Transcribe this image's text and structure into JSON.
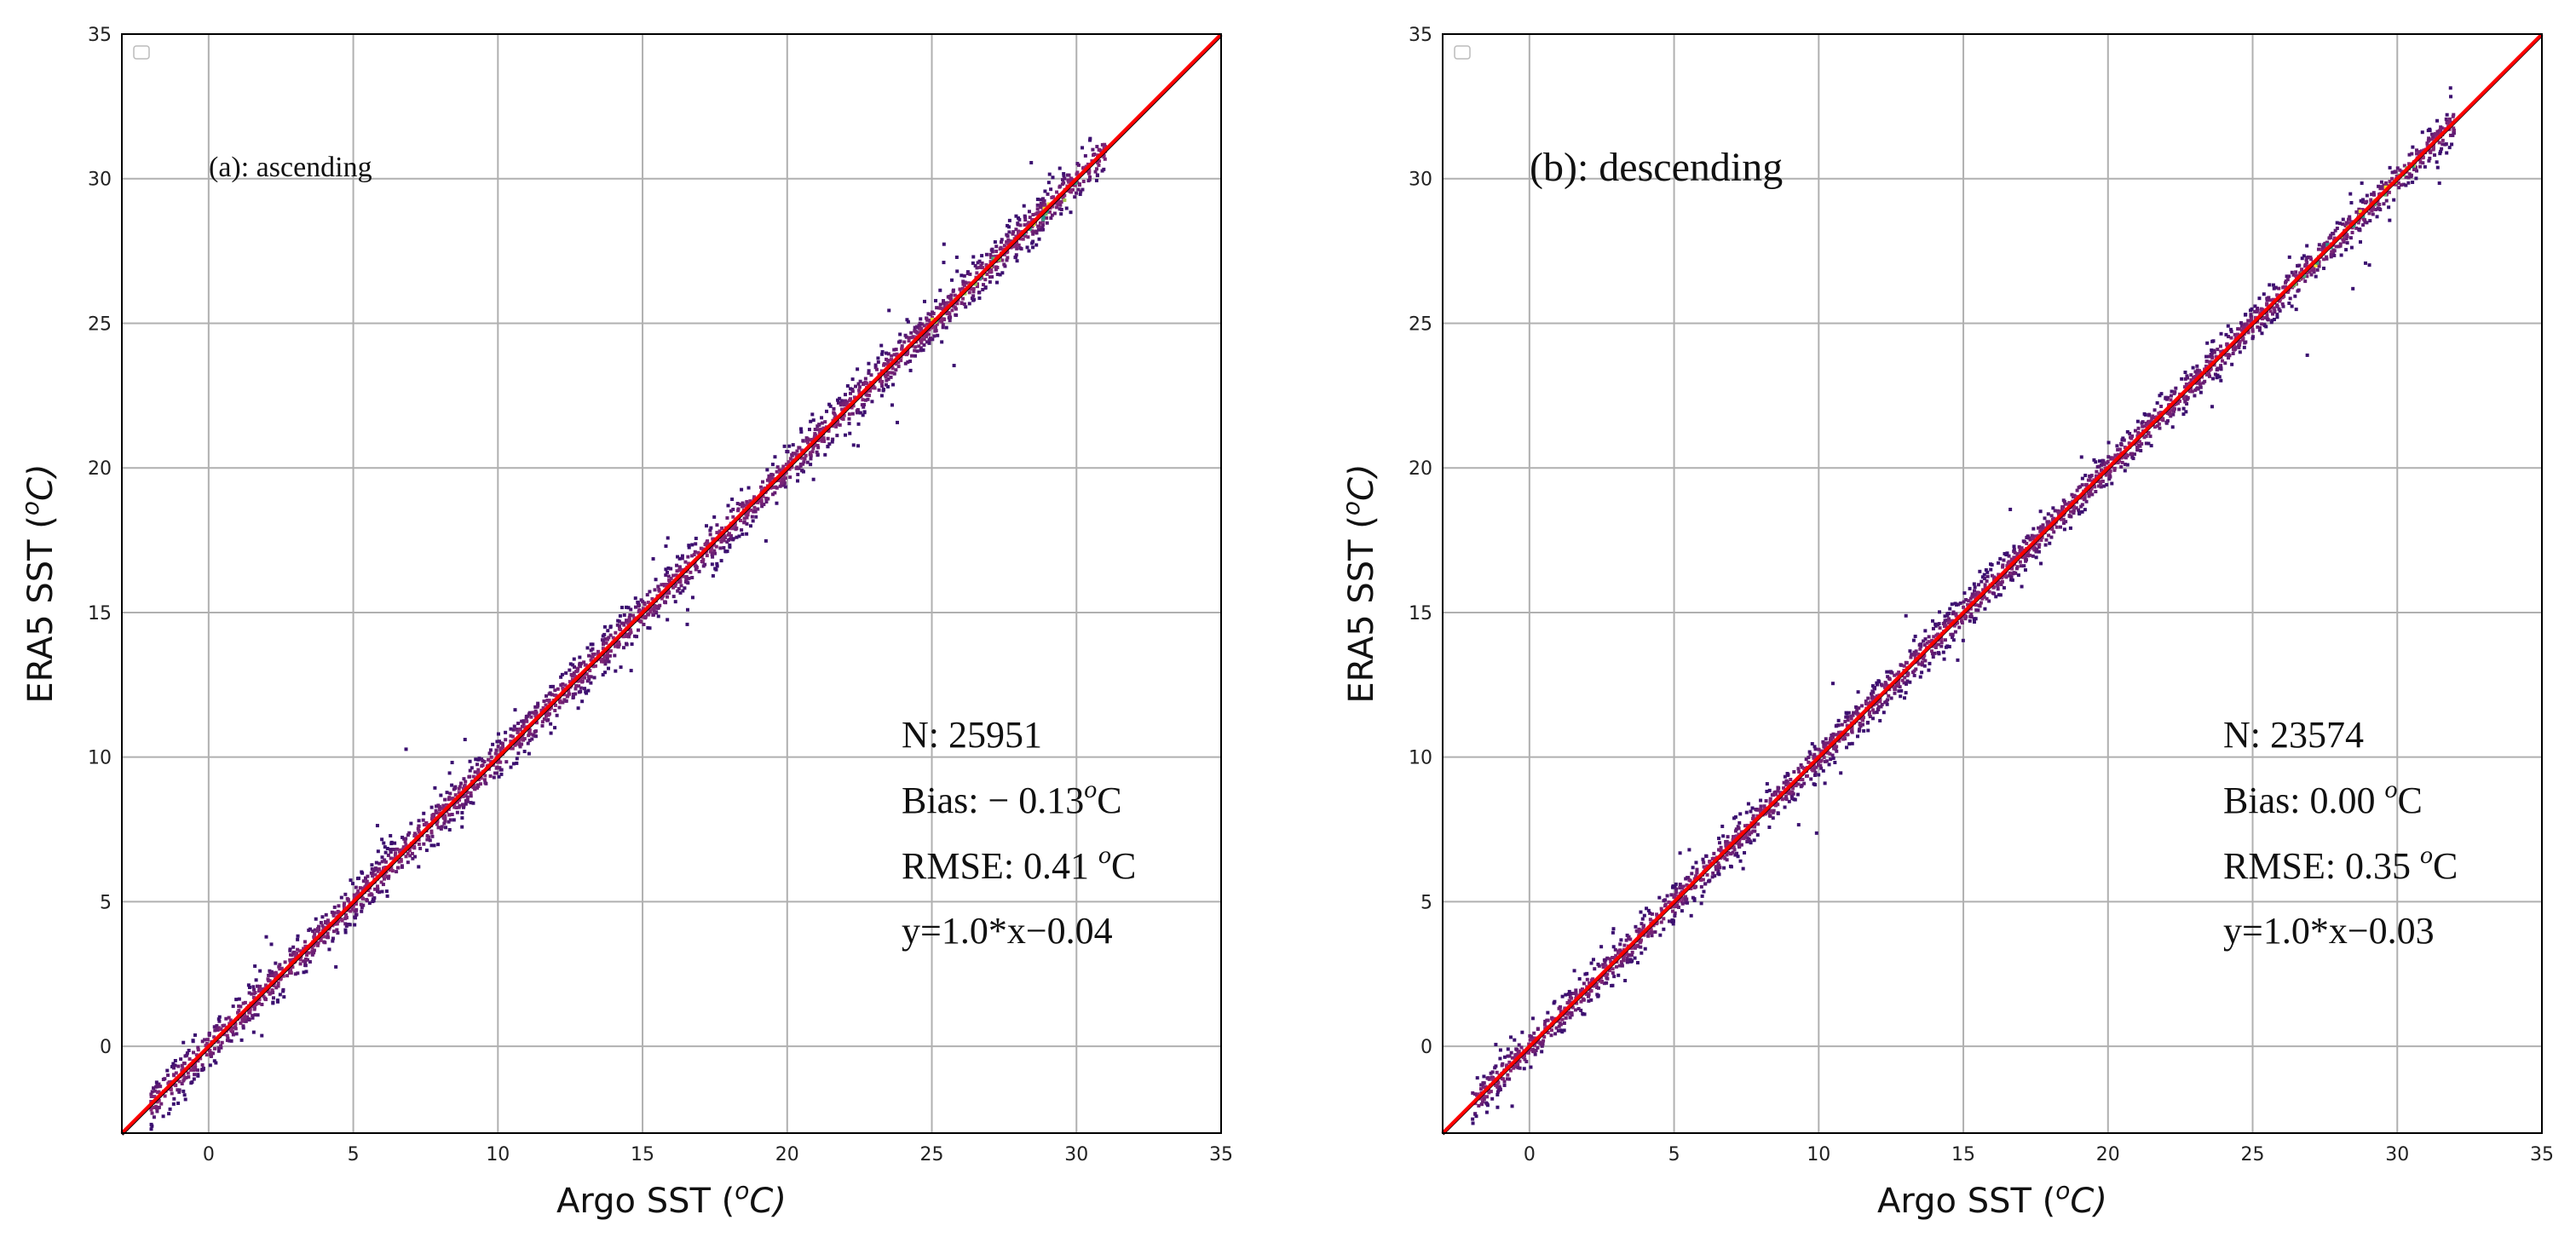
{
  "figure_caption": "",
  "colors": {
    "identity_line": "#ff0000",
    "fit_line": "#000000",
    "grid": "#b0b0b0",
    "density_low": "#3b0f70",
    "density_high": "#fde725"
  },
  "chart_data": [
    {
      "type": "scatter",
      "subtype": "density-hexbin",
      "panel_label": "(a): ascending",
      "xlabel": "Argo SST (°C)",
      "xlabel_main": "Argo SST (",
      "xlabel_sup": "o",
      "xlabel_tail": "C)",
      "ylabel": "ERA5 SST (°C)",
      "ylabel_main": "ERA5 SST (",
      "ylabel_sup": "o",
      "ylabel_tail": "C)",
      "xlim": [
        -3,
        35
      ],
      "ylim": [
        -3,
        35
      ],
      "xticks": [
        0,
        5,
        10,
        15,
        20,
        25,
        30,
        35
      ],
      "yticks": [
        0,
        5,
        10,
        15,
        20,
        25,
        30,
        35
      ],
      "grid": true,
      "legend": "top-left (empty)",
      "data_range": [
        -2,
        31
      ],
      "spread": 0.41,
      "n_display": 2600,
      "fit": {
        "slope": 1.0,
        "intercept": -0.04
      },
      "identity_line": {
        "slope": 1.0,
        "intercept": 0.0
      },
      "stats": {
        "n": "N: 25951",
        "bias_prefix": "Bias: − 0.13",
        "bias_sup": "o",
        "bias_unit": "C",
        "rmse_prefix": "RMSE: 0.41 ",
        "rmse_sup": "o",
        "rmse_unit": "C",
        "equation": "y=1.0*x−0.04"
      }
    },
    {
      "type": "scatter",
      "subtype": "density-hexbin",
      "panel_label": "(b): descending",
      "xlabel": "Argo SST (°C)",
      "xlabel_main": "Argo SST (",
      "xlabel_sup": "o",
      "xlabel_tail": "C)",
      "ylabel": "ERA5 SST (°C)",
      "ylabel_main": "ERA5 SST (",
      "ylabel_sup": "o",
      "ylabel_tail": "C)",
      "xlim": [
        -3,
        35
      ],
      "ylim": [
        -3,
        35
      ],
      "xticks": [
        0,
        5,
        10,
        15,
        20,
        25,
        30,
        35
      ],
      "yticks": [
        0,
        5,
        10,
        15,
        20,
        25,
        30,
        35
      ],
      "grid": true,
      "legend": "top-left (empty)",
      "data_range": [
        -2,
        32
      ],
      "spread": 0.35,
      "n_display": 2600,
      "fit": {
        "slope": 1.0,
        "intercept": -0.03
      },
      "identity_line": {
        "slope": 1.0,
        "intercept": 0.0
      },
      "stats": {
        "n": "N: 23574",
        "bias_prefix": "Bias: 0.00 ",
        "bias_sup": "o",
        "bias_unit": "C",
        "rmse_prefix": "RMSE: 0.35 ",
        "rmse_sup": "o",
        "rmse_unit": "C",
        "equation": "y=1.0*x−0.03"
      }
    }
  ]
}
